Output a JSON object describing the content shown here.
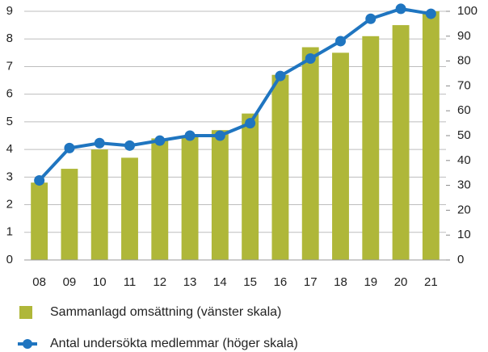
{
  "chart_data": {
    "type": "bar-line",
    "categories": [
      "08",
      "09",
      "10",
      "11",
      "12",
      "13",
      "14",
      "15",
      "16",
      "17",
      "18",
      "19",
      "20",
      "21"
    ],
    "series": [
      {
        "name": "Sammanlagd omsättning (vänster skala)",
        "type": "bar",
        "color": "#afb739",
        "axis": "y",
        "values": [
          2.8,
          3.3,
          4.0,
          3.7,
          4.4,
          4.5,
          4.7,
          5.3,
          6.7,
          7.7,
          7.5,
          8.1,
          8.5,
          9.0
        ]
      },
      {
        "name": "Antal undersökta medlemmar (höger skala)",
        "type": "line",
        "color": "#1f75c0",
        "axis": "y2",
        "values": [
          32,
          45,
          47,
          46,
          48,
          50,
          50,
          55,
          74,
          81,
          88,
          97,
          101,
          99
        ]
      }
    ],
    "ylim": [
      0,
      9
    ],
    "yticks": [
      0,
      1,
      2,
      3,
      4,
      5,
      6,
      7,
      8,
      9
    ],
    "y2lim": [
      0,
      100
    ],
    "y2ticks": [
      0,
      10,
      20,
      30,
      40,
      50,
      60,
      70,
      80,
      90,
      100
    ],
    "grid": true,
    "legend": "bottom"
  }
}
